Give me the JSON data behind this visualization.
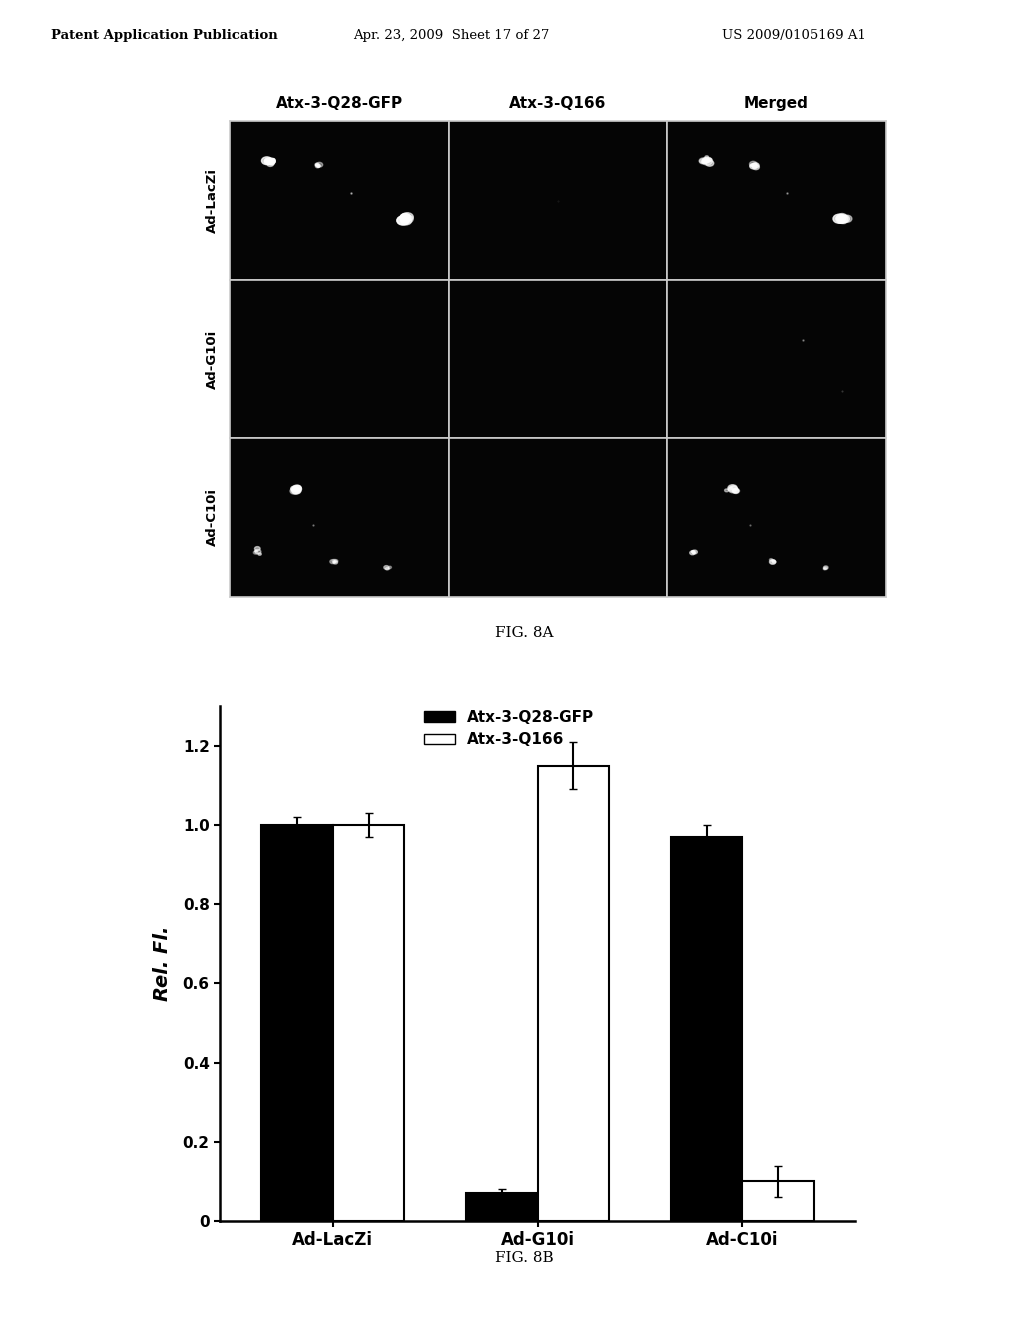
{
  "header_left": "Patent Application Publication",
  "header_mid": "Apr. 23, 2009  Sheet 17 of 27",
  "header_right": "US 2009/0105169 A1",
  "fig8a_label": "FIG. 8A",
  "fig8b_label": "FIG. 8B",
  "col_labels": [
    "Atx-3-Q28-GFP",
    "Atx-3-Q166",
    "Merged"
  ],
  "row_labels": [
    "Ad-LacZi",
    "Ad-G10i",
    "Ad-C10i"
  ],
  "bar_groups": [
    "Ad-LacZi",
    "Ad-G10i",
    "Ad-C10i"
  ],
  "series1_label": "Atx-3-Q28-GFP",
  "series2_label": "Atx-3-Q166",
  "series1_color": "#000000",
  "series2_color": "#ffffff",
  "series1_values": [
    1.0,
    0.07,
    0.97
  ],
  "series2_values": [
    1.0,
    1.15,
    0.1
  ],
  "series1_errors": [
    0.02,
    0.01,
    0.03
  ],
  "series2_errors": [
    0.03,
    0.06,
    0.04
  ],
  "ylabel": "Rel. Fl.",
  "ylim": [
    0,
    1.3
  ],
  "yticks": [
    0,
    0.2,
    0.4,
    0.6,
    0.8,
    1.0,
    1.2
  ],
  "background_color": "#ffffff",
  "bar_edge_color": "#000000",
  "bar_width": 0.35
}
